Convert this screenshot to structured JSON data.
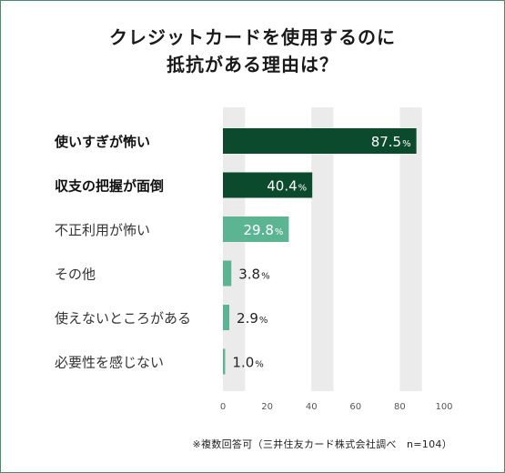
{
  "title_lines": [
    "クレジットカードを使用するのに",
    "抵抗がある理由は？"
  ],
  "footnote": "※複数回答可（三井住友カード株式会社調べ　n=104）",
  "colors": {
    "dark_green": "#0c4a2e",
    "light_green": "#5cb592",
    "stripe": "#ebebeb",
    "border": "#4e8a6a"
  },
  "chart_data": {
    "type": "bar",
    "orientation": "horizontal",
    "title": "クレジットカードを使用するのに抵抗がある理由は？",
    "categories": [
      "使いすぎが怖い",
      "収支の把握が面倒",
      "不正利用が怖い",
      "その他",
      "使えないところがある",
      "必要性を感じない"
    ],
    "values": [
      87.5,
      40.4,
      29.8,
      3.8,
      2.9,
      1.0
    ],
    "value_labels": [
      "87.5",
      "40.4",
      "29.8",
      "3.8",
      "2.9",
      "1.0"
    ],
    "unit": "%",
    "highlight": [
      true,
      true,
      false,
      false,
      false,
      false
    ],
    "xlim": [
      0,
      100
    ],
    "xticks": [
      "0",
      "20",
      "40",
      "60",
      "80",
      "100"
    ],
    "grid": "alternating vertical bands"
  }
}
